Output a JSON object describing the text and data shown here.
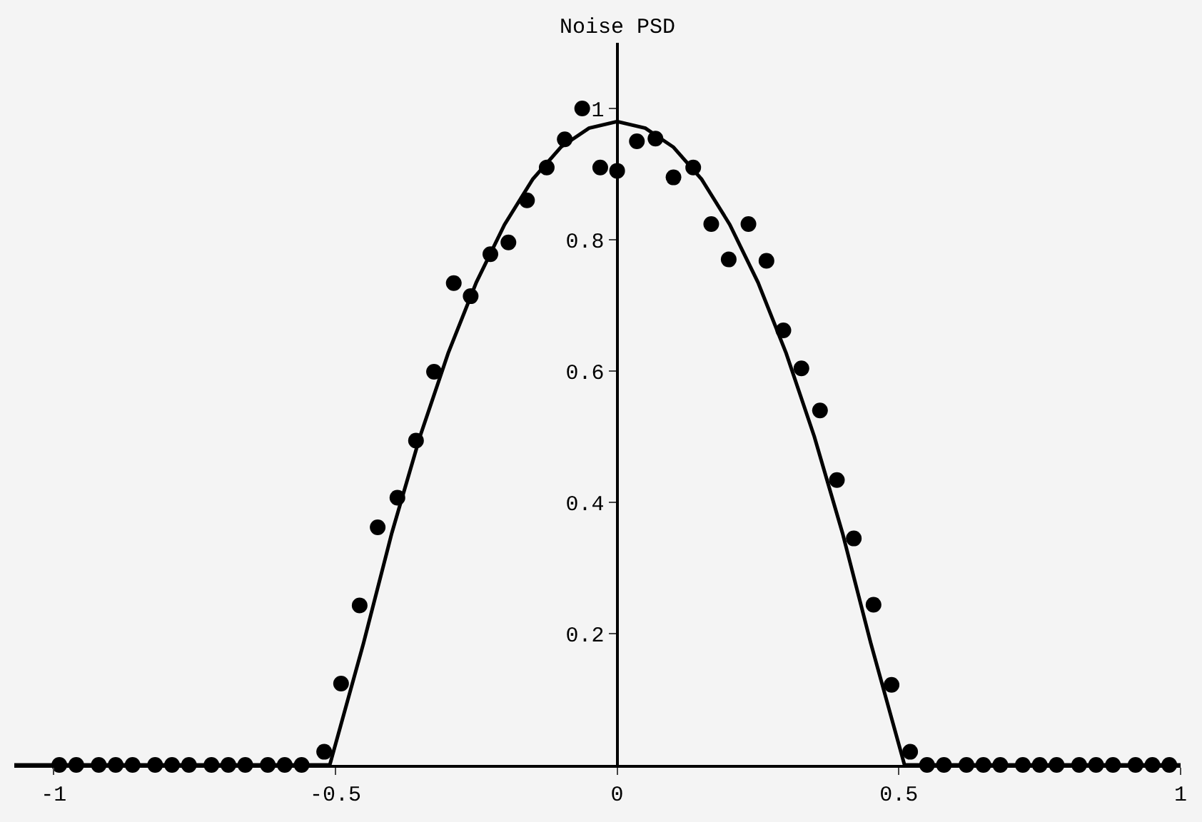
{
  "chart_data": {
    "type": "scatter",
    "ylabel": "Noise PSD",
    "xlim": [
      -1.07,
      1.0
    ],
    "ylim": [
      0,
      1.1
    ],
    "xticks": [
      -1,
      -0.5,
      0,
      0.5,
      1
    ],
    "yticks": [
      0.2,
      0.4,
      0.6,
      0.8,
      1
    ],
    "grid": false,
    "series": [
      {
        "marker": "circle",
        "color": "#000000",
        "x": [
          -0.99,
          -0.96,
          -0.92,
          -0.89,
          -0.86,
          -0.82,
          -0.79,
          -0.76,
          -0.72,
          -0.69,
          -0.66,
          -0.62,
          -0.59,
          -0.56,
          -0.52,
          -0.49,
          -0.457,
          -0.425,
          -0.39,
          -0.357,
          -0.325,
          -0.29,
          -0.26,
          -0.225,
          -0.193,
          -0.16,
          -0.125,
          -0.093,
          -0.062,
          -0.03,
          0.0,
          0.035,
          0.068,
          0.1,
          0.135,
          0.167,
          0.198,
          0.233,
          0.265,
          0.295,
          0.327,
          0.36,
          0.39,
          0.42,
          0.455,
          0.487,
          0.52,
          0.55,
          0.58,
          0.62,
          0.65,
          0.68,
          0.72,
          0.75,
          0.78,
          0.82,
          0.85,
          0.88,
          0.92,
          0.95,
          0.98
        ],
        "values": [
          0,
          0,
          0,
          0,
          0,
          0,
          0,
          0,
          0,
          0,
          0,
          0,
          0,
          0,
          0.02,
          0.124,
          0.243,
          0.362,
          0.407,
          0.494,
          0.599,
          0.734,
          0.714,
          0.778,
          0.796,
          0.86,
          0.91,
          0.953,
          1.0,
          0.91,
          0.905,
          0.95,
          0.954,
          0.895,
          0.91,
          0.824,
          0.77,
          0.824,
          0.768,
          0.662,
          0.604,
          0.54,
          0.434,
          0.345,
          0.244,
          0.122,
          0.02,
          0,
          0,
          0,
          0,
          0,
          0,
          0,
          0,
          0,
          0,
          0,
          0,
          0,
          0
        ]
      },
      {
        "type": "line",
        "marker": "none",
        "line_style": "solid",
        "color": "#000000",
        "x": [
          -1.07,
          -0.51,
          -0.45,
          -0.4,
          -0.35,
          -0.3,
          -0.25,
          -0.2,
          -0.15,
          -0.1,
          -0.05,
          0,
          0.05,
          0.1,
          0.15,
          0.2,
          0.25,
          0.3,
          0.35,
          0.4,
          0.45,
          0.51,
          1.0
        ],
        "values": [
          0,
          0,
          0.186,
          0.353,
          0.5,
          0.627,
          0.735,
          0.823,
          0.892,
          0.941,
          0.97,
          0.98,
          0.97,
          0.941,
          0.892,
          0.823,
          0.735,
          0.627,
          0.5,
          0.353,
          0.186,
          0,
          0
        ]
      }
    ]
  }
}
